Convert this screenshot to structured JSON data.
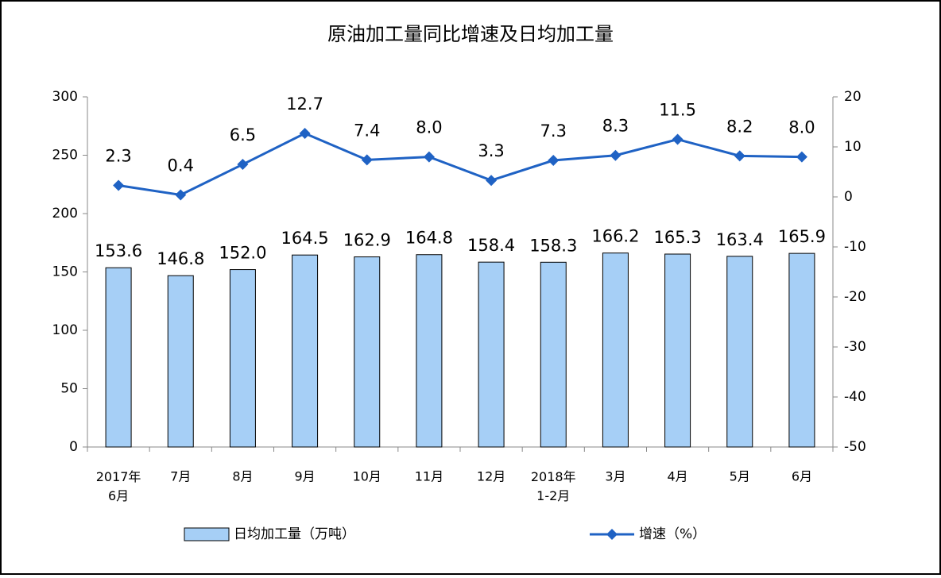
{
  "chart_data": {
    "type": "bar-line",
    "title": "原油加工量同比增速及日均加工量",
    "categories": [
      "2017年\n6月",
      "7月",
      "8月",
      "9月",
      "10月",
      "11月",
      "12月",
      "2018年\n1-2月",
      "3月",
      "4月",
      "5月",
      "6月"
    ],
    "series": [
      {
        "name": "日均加工量（万吨）",
        "type": "bar",
        "color": "#a6cff6",
        "axis": "y",
        "values": [
          153.6,
          146.8,
          152.0,
          164.5,
          162.9,
          164.8,
          158.4,
          158.3,
          166.2,
          165.3,
          163.4,
          165.9
        ],
        "value_labels": [
          "153.6",
          "146.8",
          "152.0",
          "164.5",
          "162.9",
          "164.8",
          "158.4",
          "158.3",
          "166.2",
          "165.3",
          "163.4",
          "165.9"
        ]
      },
      {
        "name": "增速（%）",
        "type": "line",
        "color": "#1f62c4",
        "axis": "y2",
        "values": [
          2.3,
          0.4,
          6.5,
          12.7,
          7.4,
          8.0,
          3.3,
          7.3,
          8.3,
          11.5,
          8.2,
          8.0
        ],
        "value_labels": [
          "2.3",
          "0.4",
          "6.5",
          "12.7",
          "7.4",
          "8.0",
          "3.3",
          "7.3",
          "8.3",
          "11.5",
          "8.2",
          "8.0"
        ]
      }
    ],
    "ylim": [
      0,
      300
    ],
    "yticks": [
      0,
      50,
      100,
      150,
      200,
      250,
      300
    ],
    "y2lim": [
      -50,
      20
    ],
    "y2ticks": [
      -50,
      -40,
      -30,
      -20,
      -10,
      0,
      10,
      20
    ],
    "grid": false
  }
}
